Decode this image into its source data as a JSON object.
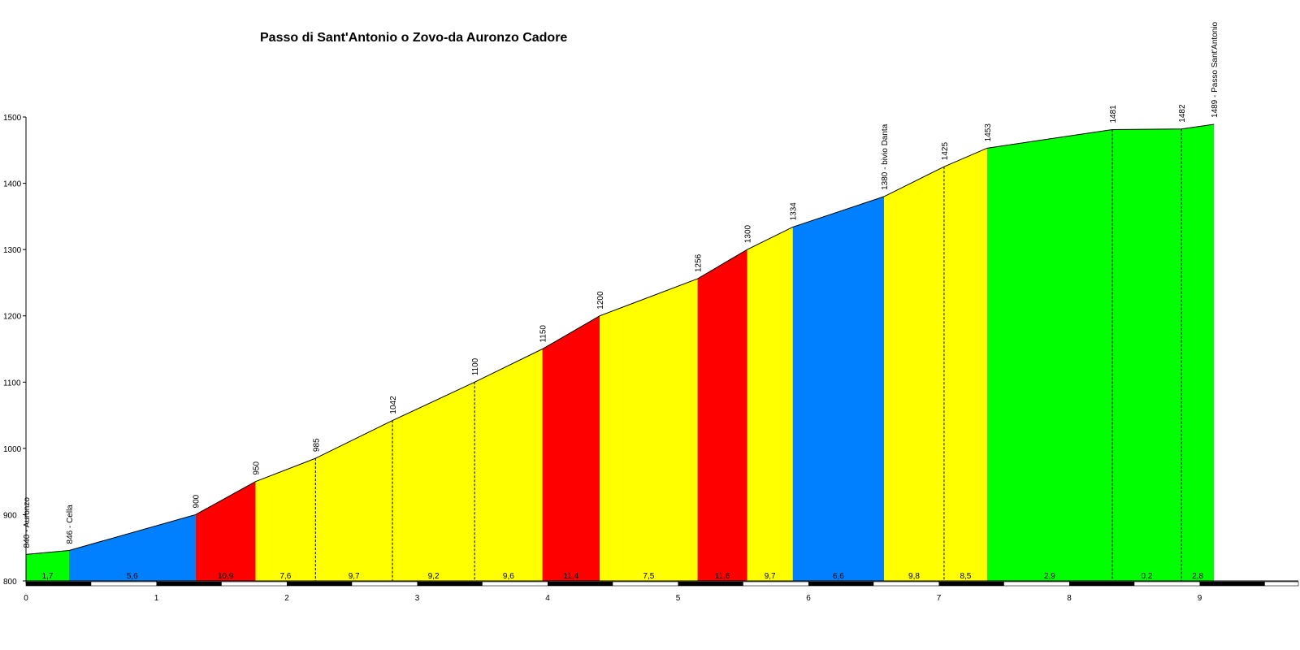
{
  "chart_data": {
    "type": "area",
    "title": "Passo di Sant'Antonio o Zovo-da Auronzo Cadore",
    "xlabel": "",
    "ylabel": "",
    "xlim": [
      0,
      9.6
    ],
    "ylim": [
      800,
      1500
    ],
    "x_ticks": [
      0,
      1,
      2,
      3,
      4,
      5,
      6,
      7,
      8,
      9
    ],
    "y_ticks": [
      800,
      900,
      1000,
      1100,
      1200,
      1300,
      1400,
      1500
    ],
    "points": [
      {
        "x": 0,
        "y": 840,
        "label": "840 - Auronzo"
      },
      {
        "x": 0.33,
        "y": 846,
        "label": "846 - Cella"
      },
      {
        "x": 1.3,
        "y": 900,
        "label": "900"
      },
      {
        "x": 1.76,
        "y": 950,
        "label": "950"
      },
      {
        "x": 2.22,
        "y": 985,
        "label": "985"
      },
      {
        "x": 2.81,
        "y": 1042,
        "label": "1042"
      },
      {
        "x": 3.44,
        "y": 1100,
        "label": "1100"
      },
      {
        "x": 3.96,
        "y": 1150,
        "label": "1150"
      },
      {
        "x": 4.4,
        "y": 1200,
        "label": "1200"
      },
      {
        "x": 5.15,
        "y": 1256,
        "label": "1256"
      },
      {
        "x": 5.53,
        "y": 1300,
        "label": "1300"
      },
      {
        "x": 5.88,
        "y": 1334,
        "label": "1334"
      },
      {
        "x": 6.58,
        "y": 1380,
        "label": "1380 - bivio Danta"
      },
      {
        "x": 7.04,
        "y": 1425,
        "label": "1425"
      },
      {
        "x": 7.37,
        "y": 1453,
        "label": "1453"
      },
      {
        "x": 8.33,
        "y": 1481,
        "label": "1481"
      },
      {
        "x": 8.86,
        "y": 1482,
        "label": "1482"
      },
      {
        "x": 9.11,
        "y": 1489,
        "label": "1489 - Passo Sant'Antonio"
      }
    ],
    "segments": [
      {
        "grade": "1,7",
        "color": "#00ff00"
      },
      {
        "grade": "5,6",
        "color": "#0080ff"
      },
      {
        "grade": "10,9",
        "color": "#ff0000"
      },
      {
        "grade": "7,6",
        "color": "#ffff00"
      },
      {
        "grade": "9,7",
        "color": "#ffff00"
      },
      {
        "grade": "9,2",
        "color": "#ffff00"
      },
      {
        "grade": "9,6",
        "color": "#ffff00"
      },
      {
        "grade": "11,4",
        "color": "#ff0000"
      },
      {
        "grade": "7,5",
        "color": "#ffff00"
      },
      {
        "grade": "11,6",
        "color": "#ff0000"
      },
      {
        "grade": "9,7",
        "color": "#ffff00"
      },
      {
        "grade": "6,6",
        "color": "#0080ff"
      },
      {
        "grade": "9,8",
        "color": "#ffff00"
      },
      {
        "grade": "8,5",
        "color": "#ffff00"
      },
      {
        "grade": "2,9",
        "color": "#00ff00"
      },
      {
        "grade": "0,2",
        "color": "#00ff00"
      },
      {
        "grade": "2,8",
        "color": "#00ff00"
      }
    ],
    "dashed_boundaries": [
      2.22,
      2.81,
      3.44,
      7.04,
      8.33,
      8.86
    ],
    "grid": false,
    "legend": "none"
  }
}
